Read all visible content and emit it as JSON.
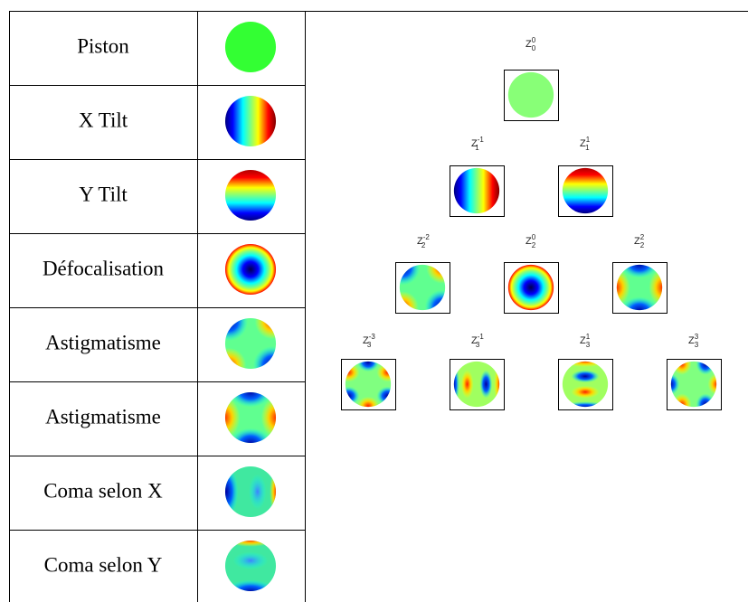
{
  "table": {
    "rows": [
      "Piston",
      "X Tilt",
      "Y Tilt",
      "Défocalisation",
      "Astigmatisme",
      "Astigmatisme",
      "Coma selon X",
      "Coma selon Y"
    ]
  },
  "pyramid": {
    "labels": [
      {
        "symbol": "Z",
        "sub": "0",
        "sup": "0"
      },
      {
        "symbol": "Z",
        "sub": "1",
        "sup": "-1"
      },
      {
        "symbol": "Z",
        "sub": "1",
        "sup": "1"
      },
      {
        "symbol": "Z",
        "sub": "2",
        "sup": "-2"
      },
      {
        "symbol": "Z",
        "sub": "2",
        "sup": "0"
      },
      {
        "symbol": "Z",
        "sub": "2",
        "sup": "2"
      },
      {
        "symbol": "Z",
        "sub": "3",
        "sup": "-3"
      },
      {
        "symbol": "Z",
        "sub": "3",
        "sup": "-1"
      },
      {
        "symbol": "Z",
        "sub": "3",
        "sup": "1"
      },
      {
        "symbol": "Z",
        "sub": "3",
        "sup": "3"
      }
    ]
  }
}
